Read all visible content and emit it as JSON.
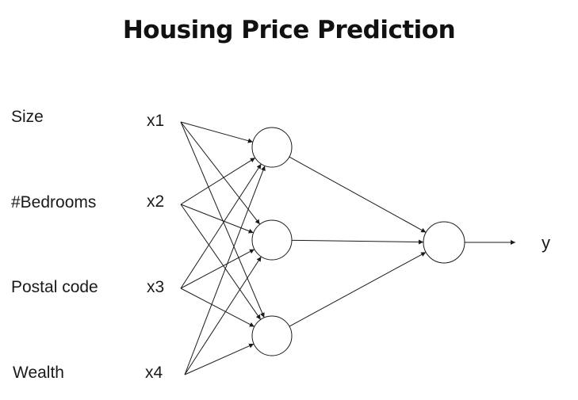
{
  "title": "Housing Price Prediction",
  "features": [
    "Size",
    "#Bedrooms",
    "Postal code",
    "Wealth"
  ],
  "inputs": [
    "x1",
    "x2",
    "x3",
    "x4"
  ],
  "hidden_units": 3,
  "output_label": "y",
  "colors": {
    "line": "#1a1a1a",
    "node_fill": "#ffffff",
    "text": "#1a1a1a"
  }
}
